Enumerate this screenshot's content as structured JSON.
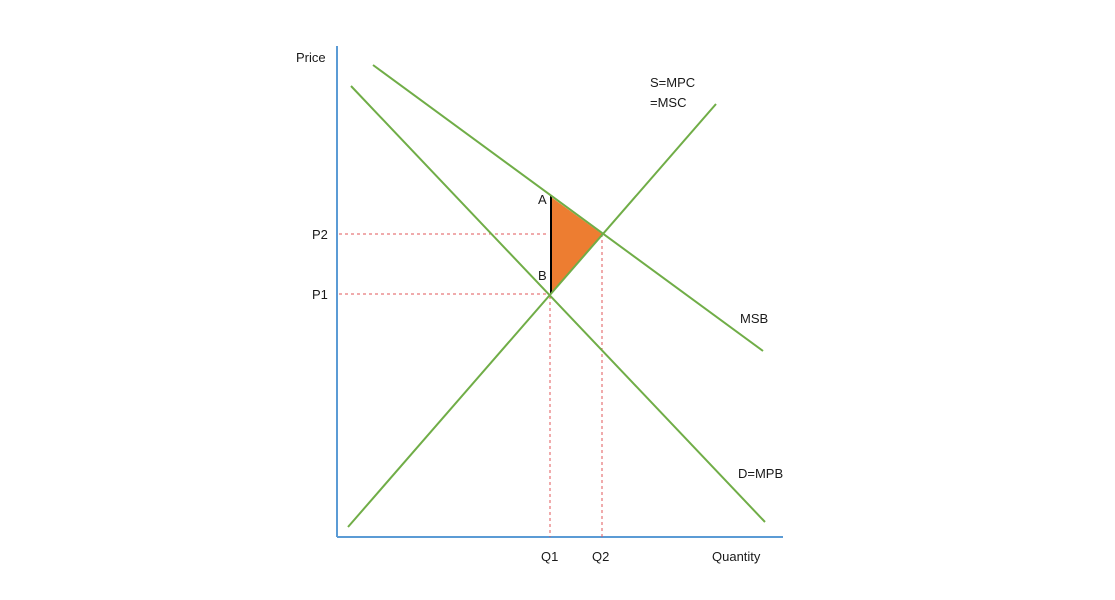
{
  "axes": {
    "y_label": "Price",
    "x_label": "Quantity"
  },
  "curves": {
    "supply": [
      "S=MPC",
      "=MSC"
    ],
    "msb": "MSB",
    "demand": "D=MPB"
  },
  "prices": {
    "p1": "P1",
    "p2": "P2"
  },
  "quantities": {
    "q1": "Q1",
    "q2": "Q2"
  },
  "points": {
    "a": "A",
    "b": "B"
  },
  "colors": {
    "axis": "#5b9bd5",
    "curve": "#70ad47",
    "guide": "#e15759",
    "triangle": "#ed7d31"
  }
}
